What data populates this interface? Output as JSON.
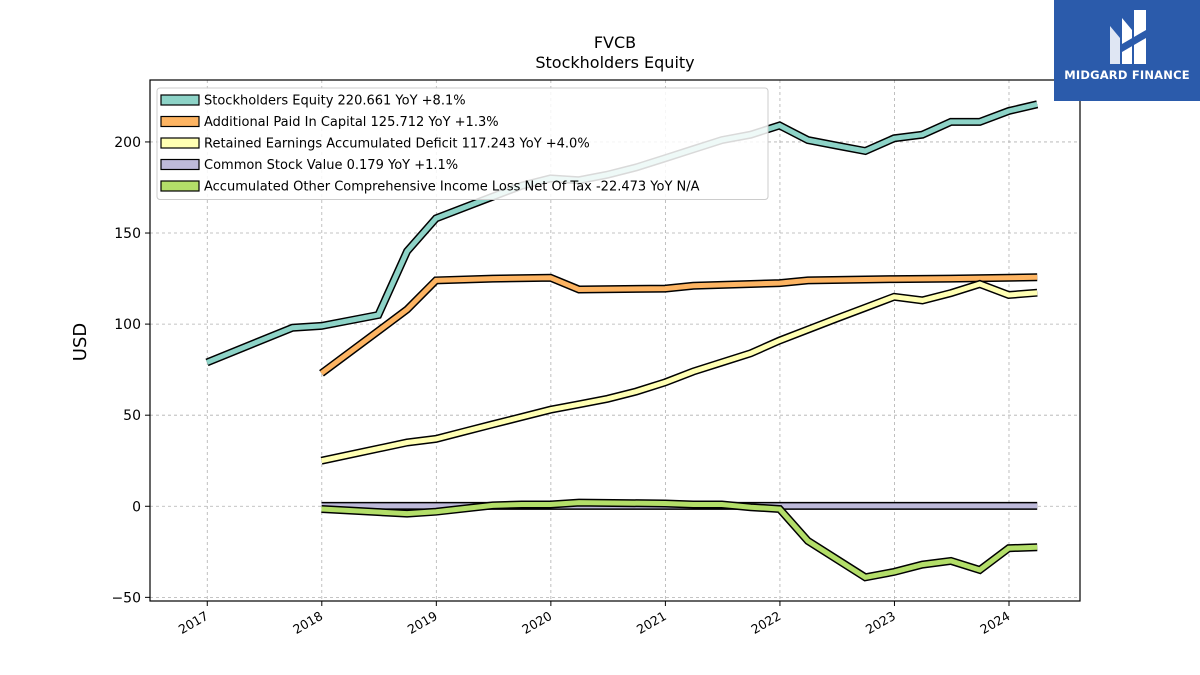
{
  "chart_data": {
    "type": "line",
    "title": "FVCB",
    "subtitle": "Stockholders  Equity",
    "ylabel": "USD",
    "xlabel": "",
    "ylim": [
      -52,
      234
    ],
    "xlim": [
      2016.5,
      2024.62
    ],
    "yticks": [
      -50,
      0,
      50,
      100,
      150,
      200
    ],
    "ytick_labels": [
      "−50",
      "0",
      "50",
      "100",
      "150",
      "200"
    ],
    "xticks": [
      2017,
      2018,
      2019,
      2020,
      2021,
      2022,
      2023,
      2024
    ],
    "xtick_labels": [
      "2017",
      "2018",
      "2019",
      "2020",
      "2021",
      "2022",
      "2023",
      "2024"
    ],
    "grid": true,
    "legend_position": "top-left",
    "series": [
      {
        "name": "Stockholders Equity",
        "legend": "Stockholders Equity  220.661 YoY +8.1%",
        "color": "#8dd3c7",
        "x": [
          "2016-12-31",
          "2017-09-30",
          "2017-12-31",
          "2018-03-31",
          "2018-06-30",
          "2018-09-30",
          "2018-12-31",
          "2019-03-31",
          "2019-06-30",
          "2019-09-30",
          "2019-12-31",
          "2020-03-31",
          "2020-06-30",
          "2020-09-30",
          "2020-12-31",
          "2021-03-31",
          "2021-06-30",
          "2021-09-30",
          "2021-12-31",
          "2022-03-31",
          "2022-06-30",
          "2022-09-30",
          "2022-12-31",
          "2023-03-31",
          "2023-06-30",
          "2023-09-30",
          "2023-12-31",
          "2024-03-31"
        ],
        "y": [
          79,
          98,
          99,
          102,
          105,
          140,
          158,
          164,
          170,
          176,
          180,
          179,
          182,
          186,
          191,
          196,
          201,
          204,
          209,
          201,
          198,
          195,
          202,
          204,
          211,
          211,
          217,
          220.661
        ]
      },
      {
        "name": "Additional Paid In Capital",
        "legend": "Additional Paid In Capital  125.712 YoY +1.3%",
        "color": "#fdb462",
        "x": [
          "2017-12-31",
          "2018-09-30",
          "2018-12-31",
          "2019-06-30",
          "2019-12-31",
          "2020-03-31",
          "2020-12-31",
          "2021-03-31",
          "2021-12-31",
          "2022-03-31",
          "2022-12-31",
          "2023-06-30",
          "2024-03-31"
        ],
        "y": [
          73,
          108,
          124,
          125,
          125.5,
          119,
          119.5,
          121,
          122.5,
          124,
          124.7,
          125,
          125.712
        ]
      },
      {
        "name": "Retained Earnings Accumulated Deficit",
        "legend": "Retained Earnings Accumulated Deficit  117.243 YoY +4.0%",
        "color": "#ffffb3",
        "x": [
          "2017-12-31",
          "2018-09-30",
          "2018-12-31",
          "2019-03-31",
          "2019-06-30",
          "2019-09-30",
          "2019-12-31",
          "2020-03-31",
          "2020-06-30",
          "2020-09-30",
          "2020-12-31",
          "2021-03-31",
          "2021-06-30",
          "2021-09-30",
          "2021-12-31",
          "2022-03-31",
          "2022-06-30",
          "2022-09-30",
          "2022-12-31",
          "2023-03-31",
          "2023-06-30",
          "2023-09-30",
          "2023-12-31",
          "2024-03-31"
        ],
        "y": [
          25,
          35,
          37,
          41,
          45,
          49,
          53,
          56,
          59,
          63,
          68,
          74,
          79,
          84,
          91,
          97,
          103,
          109,
          115,
          113,
          117,
          122,
          116,
          117.243
        ]
      },
      {
        "name": "Common Stock Value",
        "legend": "Common Stock Value  0.179 YoY +1.1%",
        "color": "#bebada",
        "x": [
          "2017-12-31",
          "2024-03-31"
        ],
        "y": [
          0.18,
          0.179
        ]
      },
      {
        "name": "Accumulated Other Comprehensive Income Loss Net Of Tax",
        "legend": "Accumulated Other Comprehensive Income Loss Net Of Tax  -22.473 YoY N/A",
        "color": "#b3de69",
        "x": [
          "2017-12-31",
          "2018-09-30",
          "2018-12-31",
          "2019-06-30",
          "2019-09-30",
          "2019-12-31",
          "2020-03-31",
          "2020-12-31",
          "2021-03-31",
          "2021-06-30",
          "2021-09-30",
          "2021-12-31",
          "2022-03-31",
          "2022-09-30",
          "2022-12-31",
          "2023-03-31",
          "2023-06-30",
          "2023-09-30",
          "2023-12-31",
          "2024-03-31"
        ],
        "y": [
          -1.5,
          -4,
          -3,
          0.5,
          1,
          1,
          2,
          1.5,
          1,
          1,
          -0.5,
          -1.5,
          -19,
          -39,
          -36,
          -32,
          -30,
          -35,
          -23,
          -22.473
        ]
      }
    ]
  },
  "logo": {
    "text": "MIDGARD FINANCE",
    "background": "#2b5bab"
  }
}
